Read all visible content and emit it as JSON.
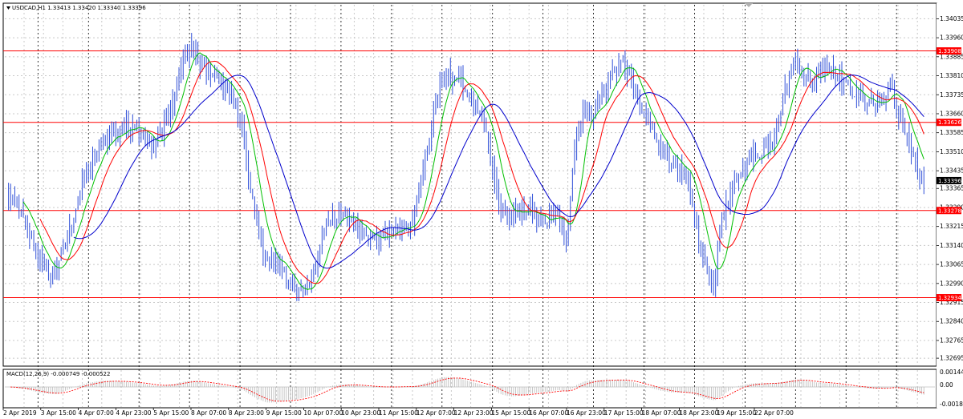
{
  "window": {
    "symbol_info": "USDCAD,H1 1.33413 1.33420 1.33340 1.33396"
  },
  "macd_panel": {
    "label": "MACD(12,26,9) -0.000749 -0.000522",
    "axis_labels": [
      "0.00144",
      "0.00",
      "-0.001866"
    ]
  },
  "chart_data": {
    "type": "line",
    "symbol": "USDCAD",
    "timeframe": "H1",
    "ohlc_last": {
      "open": 1.33413,
      "high": 1.3342,
      "low": 1.3334,
      "close": 1.33396
    },
    "y_ticks": [
      "1.34035",
      "1.33960",
      "1.33885",
      "1.33810",
      "1.33735",
      "1.33660",
      "1.33585",
      "1.33510",
      "1.33435",
      "1.33365",
      "1.33290",
      "1.33215",
      "1.33140",
      "1.33065",
      "1.32990",
      "1.32915",
      "1.32840",
      "1.32765",
      "1.32695"
    ],
    "ylim": [
      1.3267,
      1.3409
    ],
    "x_labels": [
      "2 Apr 2019",
      "3 Apr 15:00",
      "4 Apr 07:00",
      "4 Apr 23:00",
      "5 Apr 15:00",
      "8 Apr 07:00",
      "8 Apr 23:00",
      "9 Apr 15:00",
      "10 Apr 07:00",
      "10 Apr 23:00",
      "11 Apr 15:00",
      "12 Apr 07:00",
      "12 Apr 23:00",
      "15 Apr 15:00",
      "16 Apr 07:00",
      "16 Apr 23:00",
      "17 Apr 15:00",
      "18 Apr 07:00",
      "18 Apr 23:00",
      "19 Apr 15:00",
      "22 Apr 07:00"
    ],
    "levels": [
      {
        "value": 1.33908,
        "label": "1.33908",
        "color": "#ff0000"
      },
      {
        "value": 1.33626,
        "label": "1.33626",
        "color": "#ff0000"
      },
      {
        "value": 1.33278,
        "label": "1.33278",
        "color": "#ff0000"
      },
      {
        "value": 1.32934,
        "label": "1.32934",
        "color": "#ff0000"
      }
    ],
    "current_price": {
      "value": 1.33396,
      "label": "1.33396",
      "color": "#000000"
    },
    "price_keypoints": [
      [
        0,
        1.3335
      ],
      [
        8,
        1.3325
      ],
      [
        15,
        1.331
      ],
      [
        22,
        1.3302
      ],
      [
        28,
        1.3315
      ],
      [
        35,
        1.3335
      ],
      [
        45,
        1.3355
      ],
      [
        55,
        1.336
      ],
      [
        62,
        1.3362
      ],
      [
        70,
        1.3352
      ],
      [
        78,
        1.3368
      ],
      [
        84,
        1.3388
      ],
      [
        88,
        1.3392
      ],
      [
        94,
        1.3383
      ],
      [
        100,
        1.338
      ],
      [
        106,
        1.3375
      ],
      [
        112,
        1.3362
      ],
      [
        116,
        1.3335
      ],
      [
        122,
        1.3312
      ],
      [
        130,
        1.3305
      ],
      [
        138,
        1.3295
      ],
      [
        146,
        1.3302
      ],
      [
        152,
        1.3322
      ],
      [
        160,
        1.3328
      ],
      [
        168,
        1.332
      ],
      [
        176,
        1.3316
      ],
      [
        184,
        1.332
      ],
      [
        192,
        1.3322
      ],
      [
        196,
        1.3335
      ],
      [
        200,
        1.3352
      ],
      [
        204,
        1.3372
      ],
      [
        210,
        1.3382
      ],
      [
        216,
        1.3378
      ],
      [
        222,
        1.337
      ],
      [
        228,
        1.3358
      ],
      [
        234,
        1.333
      ],
      [
        240,
        1.3326
      ],
      [
        248,
        1.3328
      ],
      [
        256,
        1.3322
      ],
      [
        262,
        1.3328
      ],
      [
        266,
        1.3315
      ],
      [
        270,
        1.3352
      ],
      [
        274,
        1.3368
      ],
      [
        278,
        1.3365
      ],
      [
        282,
        1.3372
      ],
      [
        288,
        1.3382
      ],
      [
        292,
        1.3386
      ],
      [
        296,
        1.3382
      ],
      [
        300,
        1.337
      ],
      [
        306,
        1.336
      ],
      [
        312,
        1.3352
      ],
      [
        318,
        1.3345
      ],
      [
        324,
        1.3338
      ],
      [
        330,
        1.3312
      ],
      [
        336,
        1.3298
      ],
      [
        340,
        1.3325
      ],
      [
        346,
        1.3338
      ],
      [
        352,
        1.3348
      ],
      [
        358,
        1.335
      ],
      [
        364,
        1.3356
      ],
      [
        370,
        1.3375
      ],
      [
        374,
        1.3386
      ],
      [
        378,
        1.3385
      ],
      [
        382,
        1.3378
      ],
      [
        386,
        1.3382
      ],
      [
        390,
        1.3386
      ],
      [
        394,
        1.3383
      ],
      [
        400,
        1.3376
      ],
      [
        406,
        1.3372
      ],
      [
        412,
        1.337
      ],
      [
        418,
        1.3372
      ],
      [
        420,
        1.3378
      ],
      [
        424,
        1.3366
      ],
      [
        428,
        1.3356
      ],
      [
        432,
        1.3346
      ],
      [
        436,
        1.3338
      ]
    ],
    "series": [
      {
        "name": "",
        "color": "#3050d8",
        "style": "price"
      },
      {
        "name": "",
        "color": "#00c000",
        "period": 8
      },
      {
        "name": "",
        "color": "#ff0000",
        "period": 16
      },
      {
        "name": "",
        "color": "#0000cc",
        "period": 32
      }
    ],
    "macd": {
      "fast": 12,
      "slow": 26,
      "signal": 9,
      "main": -0.000749,
      "signal_value": -0.000522,
      "ylim": [
        -0.0021,
        0.0016
      ]
    },
    "grid": true,
    "legend": "none"
  }
}
